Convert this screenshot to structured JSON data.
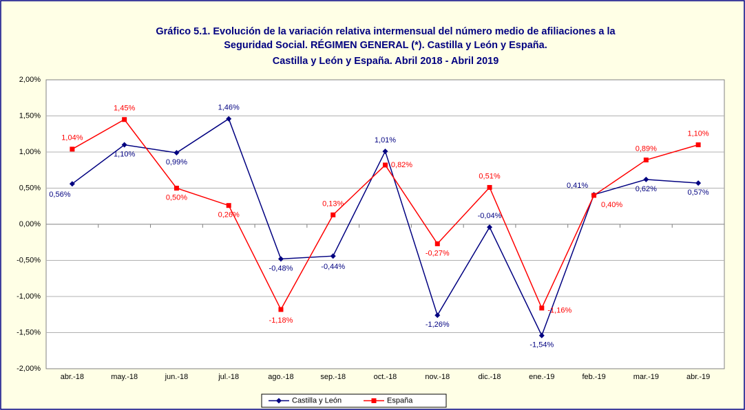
{
  "chart_data": {
    "type": "line",
    "title": [
      "Gráfico 5.1. Evolución de la variación relativa intermensual del número medio de afiliaciones a la",
      "Seguridad Social. RÉGIMEN GENERAL (*). Castilla y León y España.",
      "Castilla y León y España. Abril 2018 - Abril 2019"
    ],
    "categories": [
      "abr.-18",
      "may.-18",
      "jun.-18",
      "jul.-18",
      "ago.-18",
      "sep.-18",
      "oct.-18",
      "nov.-18",
      "dic.-18",
      "ene.-19",
      "feb.-19",
      "mar.-19",
      "abr.-19"
    ],
    "series": [
      {
        "name": "Castilla y León",
        "color": "#000080",
        "marker": "diamond",
        "values": [
          0.56,
          1.1,
          0.99,
          1.46,
          -0.48,
          -0.44,
          1.01,
          -1.26,
          -0.04,
          -1.54,
          0.41,
          0.62,
          0.57
        ],
        "value_labels": [
          "0,56%",
          "1,10%",
          "0,99%",
          "1,46%",
          "-0,48%",
          "-0,44%",
          "1,01%",
          "-1,26%",
          "-0,04%",
          "-1,54%",
          "0,41%",
          "0,62%",
          "0,57%"
        ]
      },
      {
        "name": "España",
        "color": "#ff0000",
        "marker": "square",
        "values": [
          1.04,
          1.45,
          0.5,
          0.26,
          -1.18,
          0.13,
          0.82,
          -0.27,
          0.51,
          -1.16,
          0.4,
          0.89,
          1.1
        ],
        "value_labels": [
          "1,04%",
          "1,45%",
          "0,50%",
          "0,26%",
          "-1,18%",
          "0,13%",
          "0,82%",
          "-0,27%",
          "0,51%",
          "-1,16%",
          "0,40%",
          "0,89%",
          "1,10%"
        ]
      }
    ],
    "ylim": [
      -2,
      2
    ],
    "yticks": [
      {
        "value": -2,
        "label": "-2,00%"
      },
      {
        "value": -1.5,
        "label": "-1,50%"
      },
      {
        "value": -1,
        "label": "-1,00%"
      },
      {
        "value": -0.5,
        "label": "-0,50%"
      },
      {
        "value": 0,
        "label": "0,00%"
      },
      {
        "value": 0.5,
        "label": "0,50%"
      },
      {
        "value": 1,
        "label": "1,00%"
      },
      {
        "value": 1.5,
        "label": "1,50%"
      },
      {
        "value": 2,
        "label": "2,00%"
      }
    ],
    "grid": true,
    "legend": "bottom"
  }
}
